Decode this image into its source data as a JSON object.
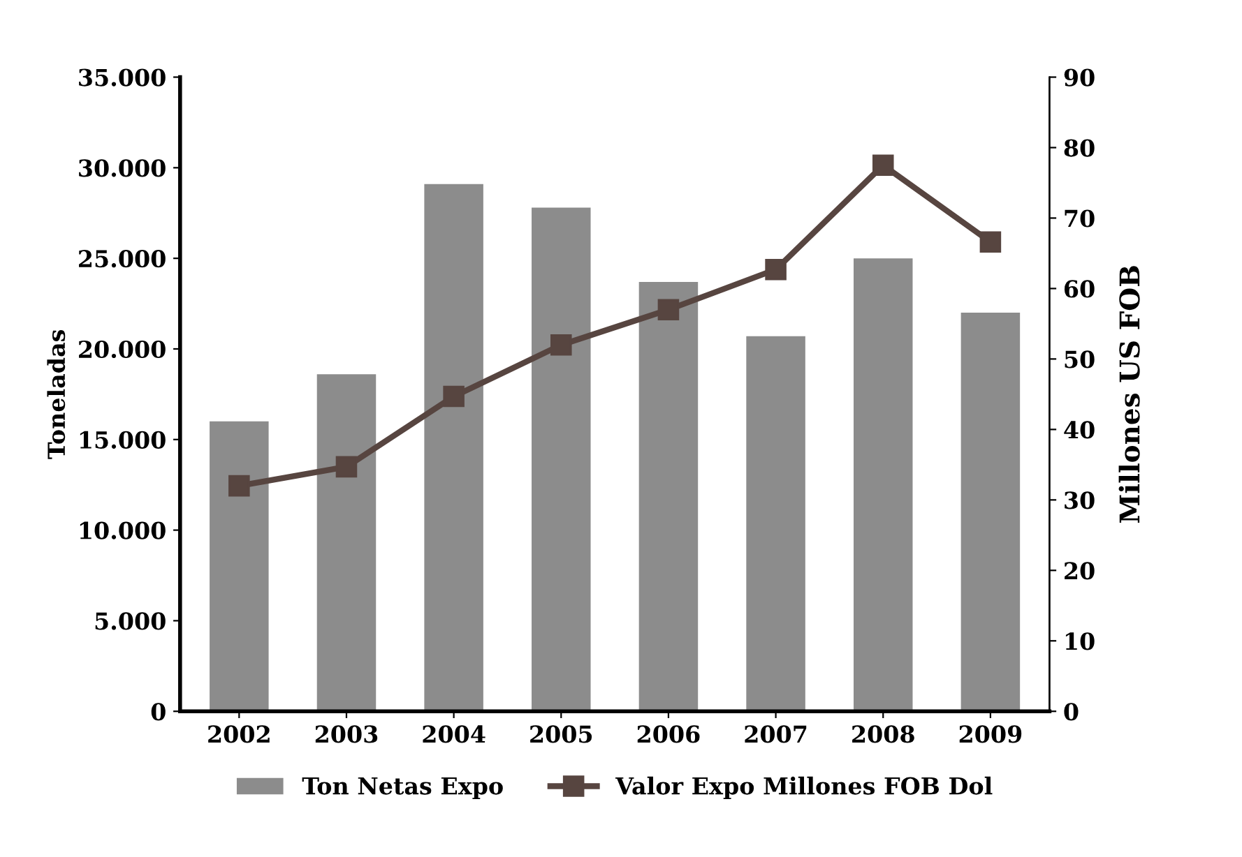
{
  "chart_data": {
    "type": "bar",
    "categories": [
      "2002",
      "2003",
      "2004",
      "2005",
      "2006",
      "2007",
      "2008",
      "2009"
    ],
    "series": [
      {
        "name": "Ton Netas Expo",
        "color": "#8c8c8c",
        "values": [
          16000,
          18600,
          29100,
          27800,
          23700,
          20700,
          25000,
          22000
        ]
      },
      {
        "name": "Valor Expo Millones FOB Dol",
        "type": "line",
        "axis": "y2",
        "color": "#574540",
        "values": [
          32.0,
          34.7,
          44.7,
          52.0,
          57.0,
          62.7,
          77.5,
          66.6
        ]
      }
    ],
    "ylabel": "Toneladas",
    "y2label": "Millones US FOB",
    "ylim": [
      0,
      35000
    ],
    "yticks": [
      {
        "value": 0,
        "label": "0"
      },
      {
        "value": 5000,
        "label": "5.000"
      },
      {
        "value": 10000,
        "label": "10.000"
      },
      {
        "value": 15000,
        "label": "15.000"
      },
      {
        "value": 20000,
        "label": "20.000"
      },
      {
        "value": 25000,
        "label": "25.000"
      },
      {
        "value": 30000,
        "label": "30.000"
      },
      {
        "value": 35000,
        "label": "35.000"
      }
    ],
    "y2lim": [
      0,
      90
    ],
    "y2ticks": [
      0,
      10,
      20,
      30,
      40,
      50,
      60,
      70,
      80,
      90
    ],
    "marker": "square",
    "line_style": "solid",
    "legend": "bottom",
    "grid": false
  }
}
